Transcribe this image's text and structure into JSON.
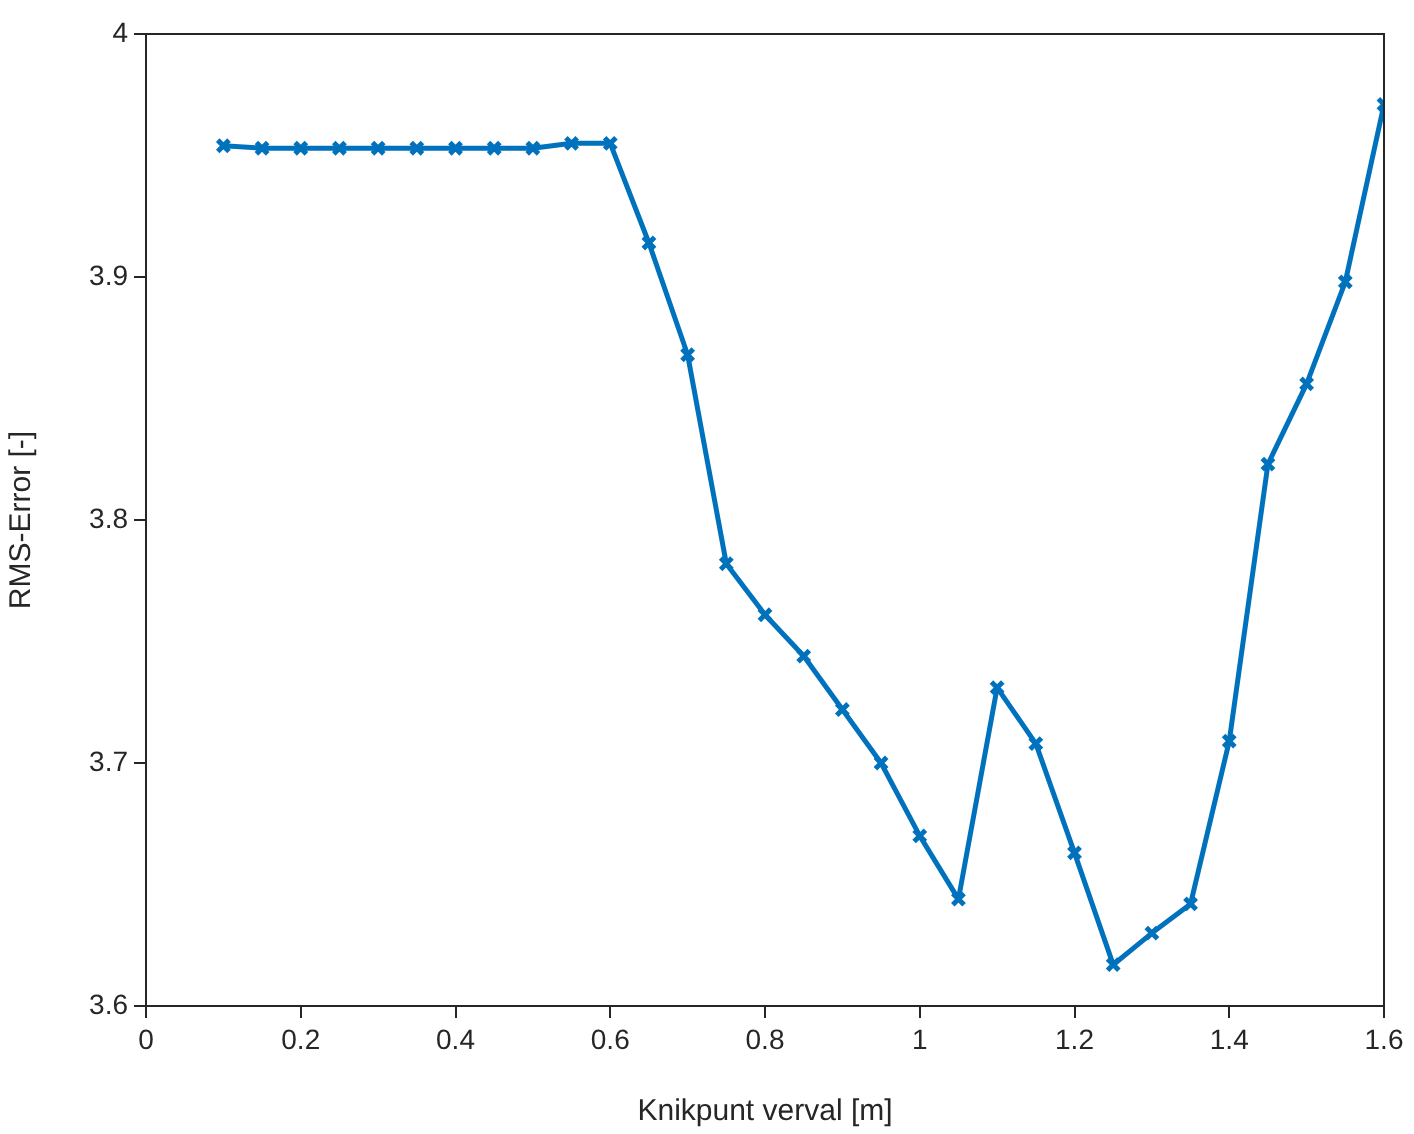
{
  "chart_data": {
    "type": "line",
    "xlabel": "Knikpunt verval [m]",
    "ylabel": "RMS-Error [-]",
    "x": [
      0.1,
      0.15,
      0.2,
      0.25,
      0.3,
      0.35,
      0.4,
      0.45,
      0.5,
      0.55,
      0.6,
      0.65,
      0.7,
      0.75,
      0.8,
      0.85,
      0.9,
      0.95,
      1.0,
      1.05,
      1.1,
      1.15,
      1.2,
      1.25,
      1.3,
      1.35,
      1.4,
      1.45,
      1.5,
      1.55,
      1.6
    ],
    "series": [
      {
        "color": "#0072bd",
        "values": [
          3.954,
          3.953,
          3.953,
          3.953,
          3.953,
          3.953,
          3.953,
          3.953,
          3.953,
          3.955,
          3.955,
          3.914,
          3.868,
          3.782,
          3.761,
          3.744,
          3.722,
          3.7,
          3.67,
          3.644,
          3.731,
          3.708,
          3.663,
          3.617,
          3.63,
          3.642,
          3.709,
          3.823,
          3.856,
          3.898,
          3.971
        ]
      }
    ],
    "xlim": [
      0,
      1.6
    ],
    "xticks": [
      0,
      0.2,
      0.4,
      0.6,
      0.8,
      1,
      1.2,
      1.4,
      1.6
    ],
    "ylim": [
      3.6,
      4
    ],
    "yticks": [
      3.6,
      3.7,
      3.8,
      3.9,
      4
    ],
    "grid": false,
    "legend": false,
    "marker": "cross",
    "line_style": "solid"
  }
}
